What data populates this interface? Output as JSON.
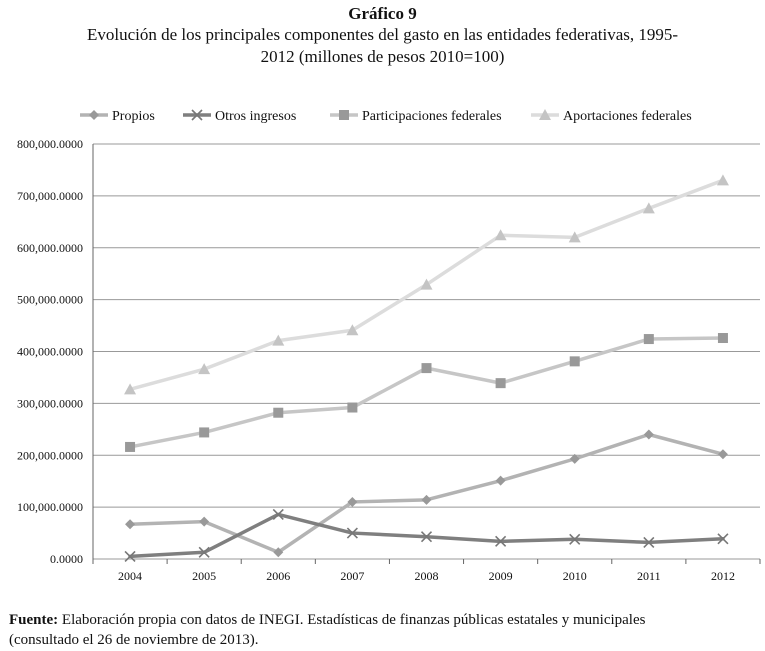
{
  "header": {
    "label": "Gráfico 9",
    "title": "Evolución de los principales componentes del gasto en las entidades federativas, 1995-2012 (millones de pesos 2010=100)"
  },
  "footnote": {
    "prefix": "Fuente:",
    "text": "Elaboración propia con datos de INEGI. Estadísticas de finanzas públicas estatales y municipales (consultado el 26 de noviembre de 2013)."
  },
  "chart_data": {
    "type": "line",
    "title": "Evolución de los principales componentes del gasto en las entidades federativas, 1995-2012 (millones de pesos 2010=100)",
    "xlabel": "",
    "ylabel": "",
    "categories": [
      "2004",
      "2005",
      "2006",
      "2007",
      "2008",
      "2009",
      "2010",
      "2011",
      "2012"
    ],
    "ylim": [
      0,
      800000
    ],
    "yticks": [
      0,
      100000,
      200000,
      300000,
      400000,
      500000,
      600000,
      700000,
      800000
    ],
    "ytick_labels": [
      "0.0000",
      "100,000.0000",
      "200,000.0000",
      "300,000.0000",
      "400,000.0000",
      "500,000.0000",
      "600,000.0000",
      "700,000.0000",
      "800,000.0000"
    ],
    "grid": true,
    "legend_position": "top",
    "series": [
      {
        "name": "Propios",
        "marker": "diamond",
        "color": "#b3b3b3",
        "values": [
          67000,
          72000,
          13000,
          110000,
          114000,
          151000,
          193000,
          240000,
          202000
        ]
      },
      {
        "name": "Otros ingresos",
        "marker": "x",
        "color": "#7f7f7f",
        "values": [
          5000,
          13000,
          86000,
          50000,
          43000,
          34000,
          38000,
          32000,
          39000
        ]
      },
      {
        "name": "Participaciones federales",
        "marker": "square",
        "color": "#c6c6c6",
        "values": [
          216000,
          244000,
          282000,
          292000,
          368000,
          339000,
          381000,
          424000,
          426000
        ]
      },
      {
        "name": "Aportaciones federales",
        "marker": "triangle",
        "color": "#dcdcdc",
        "values": [
          327000,
          366000,
          421000,
          441000,
          529000,
          624000,
          620000,
          676000,
          730000
        ]
      }
    ]
  }
}
